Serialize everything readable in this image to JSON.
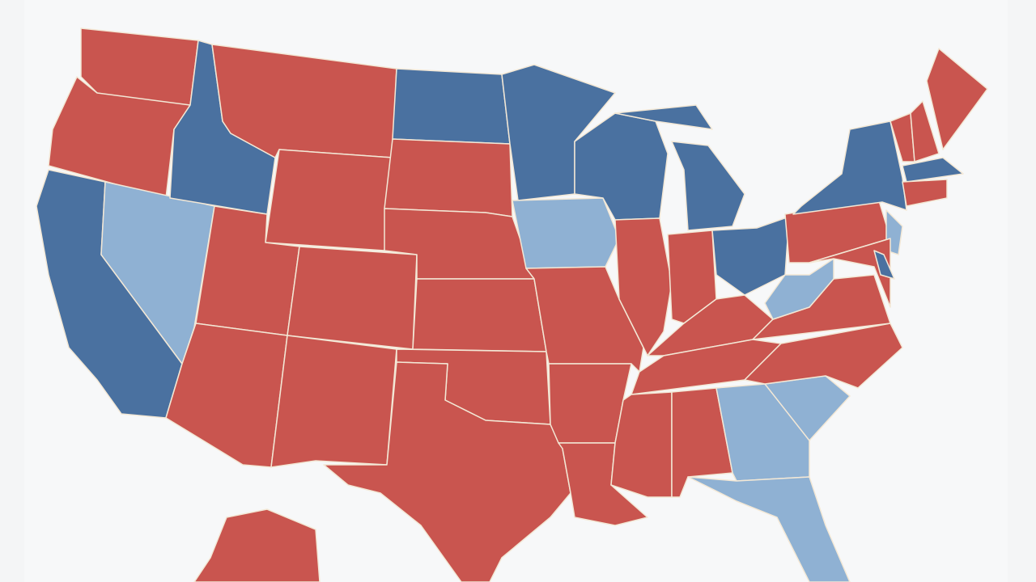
{
  "map": {
    "fills": [
      "#c9554f",
      "#4a71a0",
      "#8fb1d3"
    ],
    "border": "#f3e8d6",
    "background": "#f4f5f6",
    "panel": "#f7f8f9"
  }
}
